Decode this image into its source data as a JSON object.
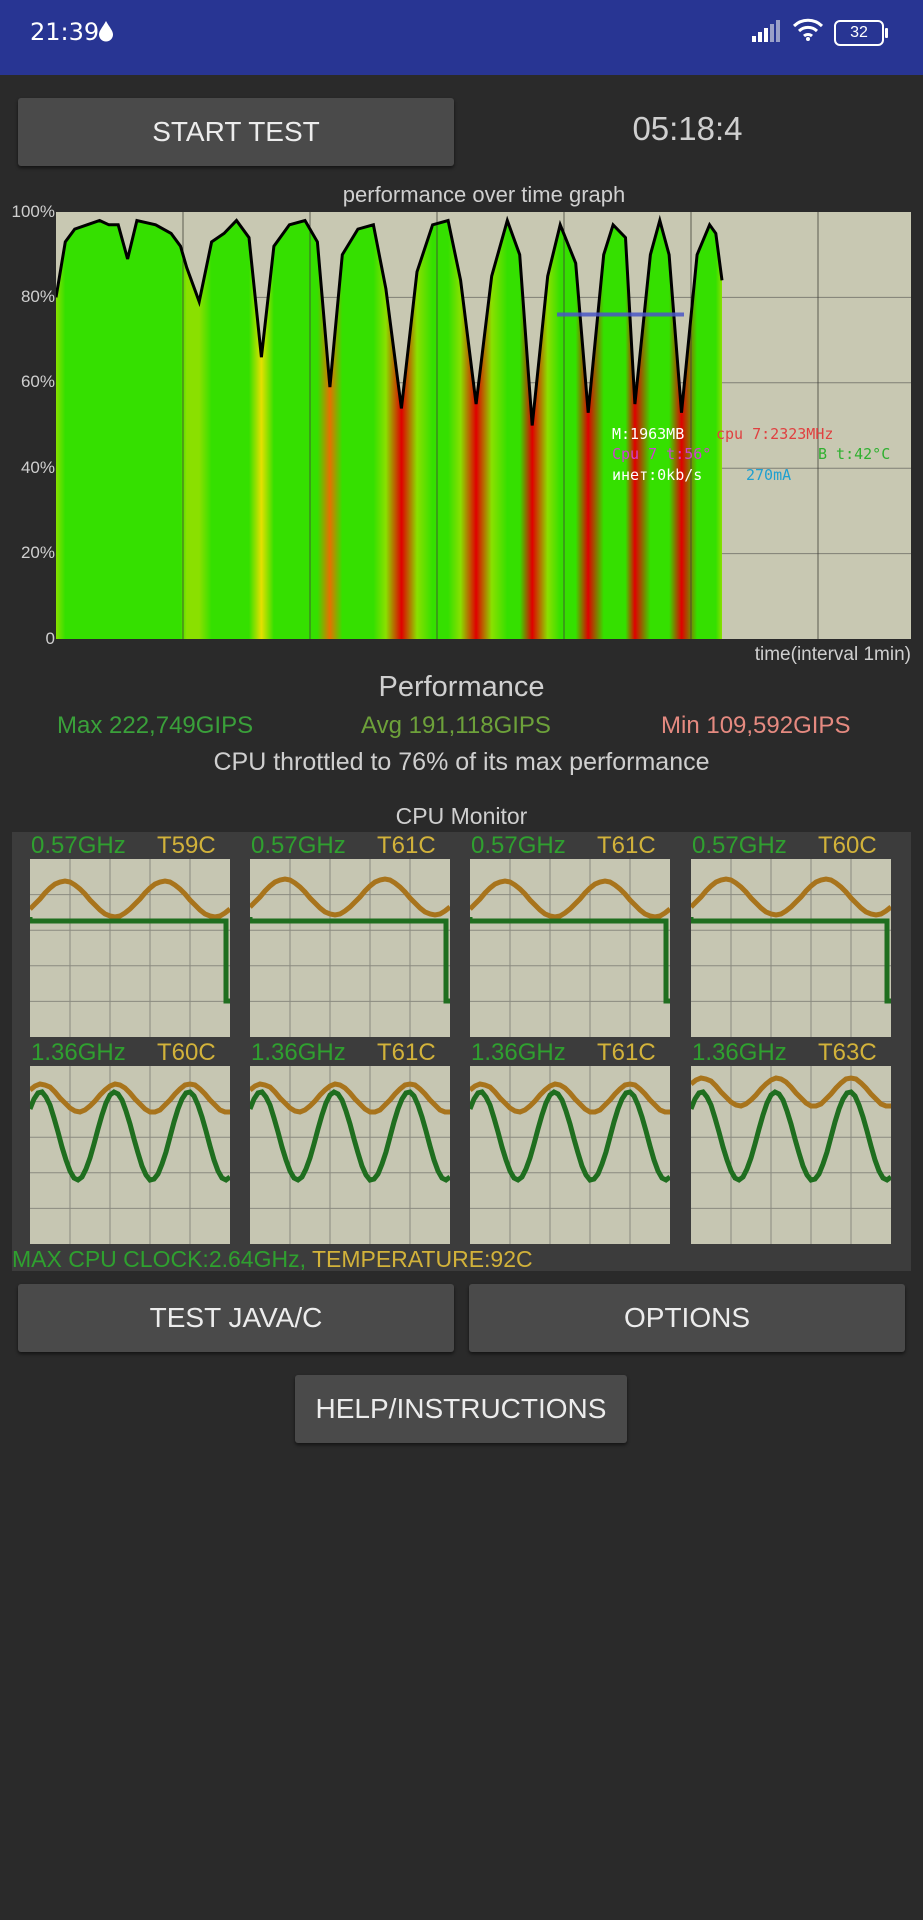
{
  "status_bar": {
    "time": "21:39",
    "battery": "32"
  },
  "buttons": {
    "start_test": "START TEST",
    "test_java_c": "TEST JAVA/C",
    "options": "OPTIONS",
    "help": "HELP/INSTRUCTIONS"
  },
  "timer": "05:18:4",
  "graph": {
    "title": "performance over time graph",
    "y_ticks": [
      "100%",
      "80%",
      "60%",
      "40%",
      "20%",
      "0"
    ],
    "time_label": "time(interval 1min)",
    "overlay": {
      "memory": "M:1963MB",
      "cpu_freq": "cpu 7:2323MHz",
      "cpu_temp": "Cpu 7 t:56°",
      "battery_temp": "B t:42°C",
      "net": "инет:0kb/s",
      "current": "270mA"
    },
    "colors": {
      "high": "#35e000",
      "mid": "#e6e000",
      "low": "#e00000",
      "avg_line": "#4a55c8"
    }
  },
  "chart_data": {
    "type": "area",
    "title": "performance over time graph",
    "xlabel": "time(interval 1min)",
    "ylabel": "",
    "ylim": [
      0,
      100
    ],
    "y_ticks": [
      "0",
      "20%",
      "40%",
      "60%",
      "80%",
      "100%"
    ],
    "average_marker": 76,
    "series": [
      {
        "values": [
          [
            0.0,
            80
          ],
          [
            0.15,
            93
          ],
          [
            0.3,
            96
          ],
          [
            0.5,
            97
          ],
          [
            0.7,
            98
          ],
          [
            0.85,
            97
          ],
          [
            1.0,
            97
          ],
          [
            1.15,
            89
          ],
          [
            1.3,
            98
          ],
          [
            1.6,
            97
          ],
          [
            1.85,
            95
          ],
          [
            2.0,
            92
          ],
          [
            2.1,
            87
          ],
          [
            2.3,
            79
          ],
          [
            2.5,
            93
          ],
          [
            2.7,
            95
          ],
          [
            2.9,
            98
          ],
          [
            3.1,
            94
          ],
          [
            3.3,
            66
          ],
          [
            3.5,
            92
          ],
          [
            3.75,
            97
          ],
          [
            4.0,
            98
          ],
          [
            4.2,
            93
          ],
          [
            4.4,
            59
          ],
          [
            4.6,
            90
          ],
          [
            4.85,
            96
          ],
          [
            5.1,
            97
          ],
          [
            5.3,
            82
          ],
          [
            5.55,
            54
          ],
          [
            5.8,
            86
          ],
          [
            6.05,
            97
          ],
          [
            6.3,
            98
          ],
          [
            6.5,
            84
          ],
          [
            6.75,
            55
          ],
          [
            7.0,
            85
          ],
          [
            7.25,
            98
          ],
          [
            7.45,
            90
          ],
          [
            7.65,
            50
          ],
          [
            7.9,
            85
          ],
          [
            8.1,
            97
          ],
          [
            8.35,
            88
          ],
          [
            8.55,
            53
          ],
          [
            8.8,
            90
          ],
          [
            8.95,
            97
          ],
          [
            9.15,
            94
          ],
          [
            9.3,
            55
          ],
          [
            9.55,
            90
          ],
          [
            9.7,
            98
          ],
          [
            9.85,
            90
          ],
          [
            10.05,
            53
          ],
          [
            10.3,
            90
          ],
          [
            10.5,
            97
          ],
          [
            10.6,
            95
          ],
          [
            10.7,
            84
          ]
        ]
      }
    ]
  },
  "performance": {
    "heading": "Performance",
    "max": "Max 222,749GIPS",
    "avg": "Avg 191,118GIPS",
    "min": "Min 109,592GIPS",
    "throttle": "CPU throttled to 76% of its max performance",
    "colors": {
      "max": "#3aa03a",
      "avg": "#6da13a",
      "min": "#e58a80"
    }
  },
  "cpu_monitor": {
    "heading": "CPU Monitor",
    "cores": [
      {
        "freq": "0.57GHz",
        "temp": "T59C"
      },
      {
        "freq": "0.57GHz",
        "temp": "T61C"
      },
      {
        "freq": "0.57GHz",
        "temp": "T61C"
      },
      {
        "freq": "0.57GHz",
        "temp": "T60C"
      },
      {
        "freq": "1.36GHz",
        "temp": "T60C"
      },
      {
        "freq": "1.36GHz",
        "temp": "T61C"
      },
      {
        "freq": "1.36GHz",
        "temp": "T61C"
      },
      {
        "freq": "1.36GHz",
        "temp": "T63C"
      }
    ],
    "max_clock": "MAX CPU CLOCK:2.64GHz,",
    "max_temp": "TEMPERATURE:92C",
    "colors": {
      "freq": "#2fa02f",
      "temp": "#d2b23a",
      "freq_line": "#1f6e1f",
      "temp_line": "#a8741c"
    }
  }
}
